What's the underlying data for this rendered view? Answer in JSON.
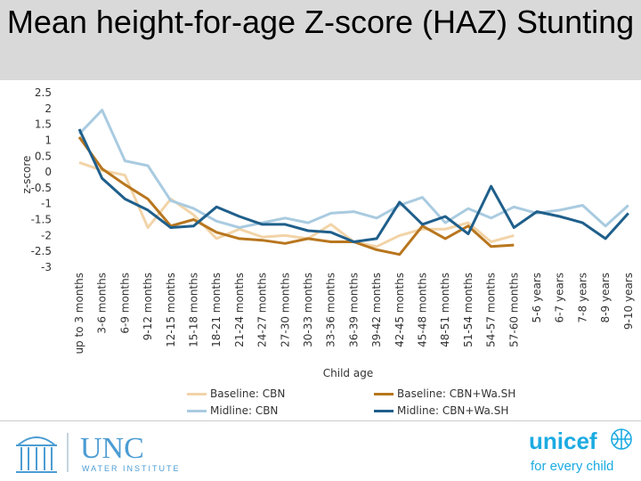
{
  "title": "Mean height-for-age Z-score (HAZ) Stunting",
  "chart_data": {
    "type": "line",
    "title": "Mean height-for-age Z-score (HAZ) Stunting",
    "xlabel": "Child age",
    "ylabel": "z-score",
    "ylim": [
      -3,
      2.5
    ],
    "yticks": [
      "2.5",
      "2",
      "1.5",
      "1",
      "0.5",
      "0",
      "-0.5",
      "-1",
      "-1.5",
      "-2",
      "-2.5",
      "-3"
    ],
    "grid": false,
    "legend_position": "bottom",
    "categories": [
      "up to 3 months",
      "3-6 months",
      "6-9 months",
      "9-12 months",
      "12-15 months",
      "15-18 months",
      "18-21 months",
      "21-24 months",
      "24-27 months",
      "27-30 months",
      "30-33 months",
      "33-36 months",
      "36-39 months",
      "39-42 months",
      "42-45 months",
      "45-48 months",
      "48-51 months",
      "51-54 months",
      "54-57 months",
      "57-60 months",
      "5-6 years",
      "6-7 years",
      "7-8 years",
      "8-9 years",
      "9-10 years"
    ],
    "series": [
      {
        "name": "Baseline: CBN",
        "color": "#f2d4a8",
        "values": [
          0.3,
          0.05,
          -0.1,
          -1.75,
          -0.85,
          -1.35,
          -2.1,
          -1.8,
          -2.05,
          -2.0,
          -2.1,
          -1.65,
          -2.2,
          -2.35,
          -2.0,
          -1.8,
          -1.8,
          -1.6,
          -2.2,
          -2.0,
          null,
          null,
          null,
          null,
          null
        ]
      },
      {
        "name": "Baseline: CBN+Wa.SH",
        "color": "#b8761e",
        "values": [
          1.1,
          0.1,
          -0.4,
          -0.85,
          -1.7,
          -1.5,
          -1.9,
          -2.1,
          -2.15,
          -2.25,
          -2.1,
          -2.2,
          -2.2,
          -2.45,
          -2.6,
          -1.7,
          -2.1,
          -1.7,
          -2.35,
          -2.3,
          null,
          null,
          null,
          null,
          null
        ]
      },
      {
        "name": "Midline: CBN",
        "color": "#a9cbe0",
        "values": [
          1.2,
          1.95,
          0.35,
          0.2,
          -0.9,
          -1.15,
          -1.55,
          -1.75,
          -1.6,
          -1.45,
          -1.6,
          -1.3,
          -1.25,
          -1.45,
          -1.05,
          -0.8,
          -1.6,
          -1.15,
          -1.45,
          -1.1,
          -1.3,
          -1.2,
          -1.05,
          -1.7,
          -1.05
        ]
      },
      {
        "name": "Midline: CBN+Wa.SH",
        "color": "#1f5f8b",
        "values": [
          1.35,
          -0.2,
          -0.85,
          -1.2,
          -1.75,
          -1.7,
          -1.1,
          -1.4,
          -1.65,
          -1.65,
          -1.85,
          -1.9,
          -2.2,
          -2.1,
          -0.95,
          -1.65,
          -1.4,
          -1.95,
          -0.45,
          -1.75,
          -1.25,
          -1.4,
          -1.6,
          -2.1,
          -1.3
        ]
      }
    ]
  },
  "footer": {
    "unc_logo_text": "UNC",
    "unc_sub_text": "WATER INSTITUTE",
    "unicef_text": "unicef",
    "unicef_tagline": "for every child"
  }
}
